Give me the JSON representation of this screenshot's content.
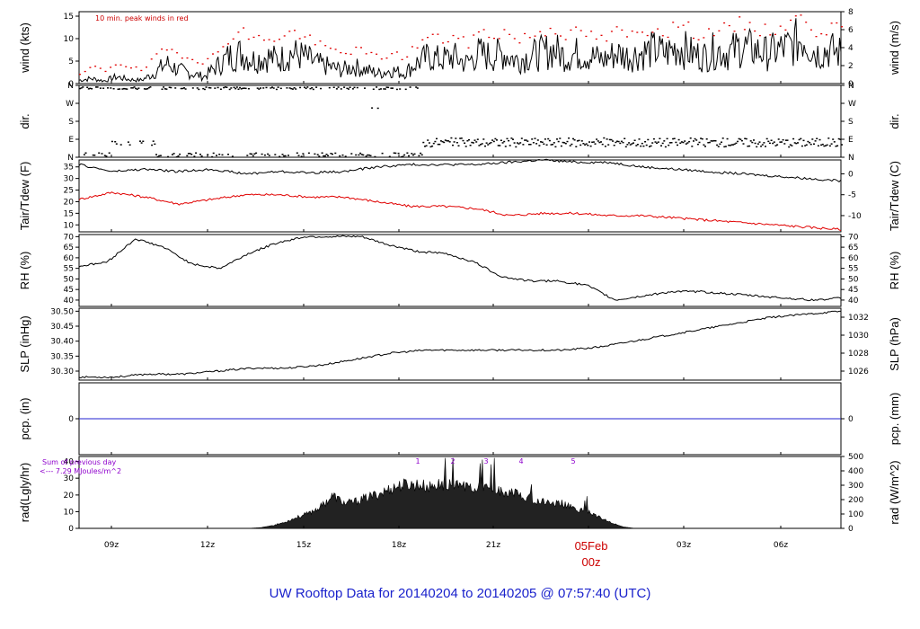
{
  "footer_title": "UW Rooftop Data for 20140204  to  20140205 @ 07:57:40  (UTC)",
  "colors": {
    "axis": "#000000",
    "red": "#e00000",
    "blue": "#2020d0",
    "purple": "#9900cc",
    "footer": "#1a22cc"
  },
  "x_axis": {
    "tick_labels": [
      "09z",
      "12z",
      "15z",
      "18z",
      "21z",
      "03z",
      "06z"
    ],
    "date_label": "05Feb",
    "date_sub_label": "00z"
  },
  "chart_data": [
    {
      "type": "line",
      "left_label": "wind (kts)",
      "right_label": "wind (m/s)",
      "annotation": "10 min. peak winds in red",
      "left_ticks": [
        "0",
        "5",
        "10",
        "15"
      ],
      "right_ticks": [
        "0",
        "2",
        "4",
        "6",
        "8"
      ],
      "ylim": [
        0,
        16
      ],
      "series": [
        {
          "values": [
            1,
            1.5,
            0.8,
            2,
            1.2,
            1,
            3,
            6,
            4,
            3,
            2,
            5,
            8,
            9,
            7,
            8,
            7,
            9,
            8,
            6,
            5,
            4,
            5,
            4,
            3,
            4,
            3,
            6,
            8,
            7,
            8,
            6,
            9,
            8,
            9,
            7,
            8,
            9,
            10,
            8,
            9,
            8,
            7,
            9,
            8,
            9,
            10,
            9,
            11,
            9,
            8,
            10,
            9,
            11,
            10,
            9,
            10,
            11,
            14,
            9,
            10,
            9
          ]
        },
        {
          "values": [
            2,
            4,
            3,
            5,
            4,
            3,
            6,
            8,
            7,
            6,
            5,
            7,
            11,
            12,
            10,
            11,
            10,
            12,
            11,
            9,
            8,
            7,
            8,
            7,
            6,
            7,
            6,
            9,
            11,
            10,
            11,
            9,
            12,
            11,
            12,
            10,
            11,
            12,
            13,
            11,
            12,
            11,
            10,
            12,
            11,
            12,
            13,
            12,
            14,
            12,
            11,
            13,
            12,
            14,
            13,
            12,
            13,
            14,
            15.5,
            12,
            13,
            12
          ]
        }
      ]
    },
    {
      "type": "scatter",
      "left_label": "dir.",
      "right_label": "dir.",
      "left_ticks": [
        "N",
        "E",
        "S",
        "W",
        "N"
      ],
      "right_ticks": [
        "N",
        "E",
        "S",
        "W",
        "N"
      ],
      "ylim": [
        0,
        360
      ]
    },
    {
      "type": "line",
      "left_label": "Tair/Tdew (F)",
      "right_label": "Tair/Tdew (C)",
      "left_ticks": [
        "10",
        "15",
        "20",
        "25",
        "30",
        "35"
      ],
      "right_ticks": [
        "-10",
        "-5",
        "0"
      ],
      "ylim": [
        7,
        38
      ],
      "series": [
        {
          "values": [
            36,
            33,
            34,
            33,
            34,
            32,
            33,
            32.5,
            33,
            35,
            36,
            36,
            36,
            37,
            38,
            37,
            37,
            35,
            34,
            33,
            32,
            31,
            30,
            29
          ]
        },
        {
          "values": [
            21,
            24,
            22,
            19,
            21,
            23,
            23,
            22,
            22,
            20,
            18,
            18,
            17,
            14,
            15,
            15,
            14,
            14,
            13,
            12,
            11,
            10,
            9,
            8
          ]
        }
      ]
    },
    {
      "type": "line",
      "left_label": "RH (%)",
      "right_label": "RH (%)",
      "left_ticks": [
        "40",
        "45",
        "50",
        "55",
        "60",
        "65",
        "70"
      ],
      "right_ticks": [
        "40",
        "45",
        "50",
        "55",
        "60",
        "65",
        "70"
      ],
      "ylim": [
        37,
        71
      ],
      "series": [
        {
          "values": [
            56,
            58,
            69,
            65,
            57,
            55,
            62,
            67,
            70,
            70,
            70,
            66,
            63,
            62,
            58,
            51,
            49,
            49,
            47,
            40,
            42,
            44,
            44,
            43,
            42,
            41,
            40,
            41
          ]
        }
      ]
    },
    {
      "type": "line",
      "left_label": "SLP (inHg)",
      "right_label": "SLP (hPa)",
      "left_ticks": [
        "30.30",
        "30.35",
        "30.40",
        "30.45",
        "30.50"
      ],
      "right_ticks": [
        "1026",
        "1028",
        "1030",
        "1032"
      ],
      "ylim": [
        30.27,
        30.51
      ],
      "series": [
        {
          "values": [
            30.28,
            30.28,
            30.29,
            30.29,
            30.3,
            30.31,
            30.31,
            30.32,
            30.34,
            30.36,
            30.37,
            30.37,
            30.37,
            30.37,
            30.37,
            30.38,
            30.4,
            30.42,
            30.44,
            30.46,
            30.48,
            30.49,
            30.5
          ]
        }
      ]
    },
    {
      "type": "line",
      "left_label": "pcp. (in)",
      "right_label": "pcp. (mm)",
      "left_ticks": [
        "0"
      ],
      "right_ticks": [
        "0"
      ],
      "ylim": [
        -1,
        1
      ],
      "series": [
        {
          "values": [
            0,
            0
          ]
        }
      ]
    },
    {
      "type": "area",
      "left_label": "rad(Lgly/hr)",
      "right_label": "rad (W/m^2)",
      "annotation_1": "Sum of previous day",
      "annotation_2": "<--- 7.29 MJoules/m^2",
      "hour_marks": [
        "1",
        "2",
        "3",
        "4",
        "5"
      ],
      "left_ticks": [
        "0",
        "10",
        "20",
        "30",
        "40"
      ],
      "right_ticks": [
        "0",
        "100",
        "200",
        "300",
        "400",
        "500"
      ],
      "ylim": [
        0,
        500
      ],
      "series": [
        {
          "values": [
            0,
            0,
            0,
            0,
            0,
            0,
            0,
            0,
            0,
            0,
            0,
            0,
            0,
            0,
            0,
            5,
            20,
            45,
            80,
            110,
            160,
            240,
            180,
            200,
            230,
            260,
            300,
            320,
            320,
            300,
            330,
            300,
            320,
            290,
            300,
            260,
            260,
            230,
            200,
            190,
            180,
            140,
            130,
            80,
            40,
            10,
            0,
            0,
            0,
            0,
            0,
            0,
            0,
            0,
            0,
            0,
            0,
            0,
            0,
            0,
            0,
            0,
            0,
            0
          ]
        }
      ]
    }
  ]
}
